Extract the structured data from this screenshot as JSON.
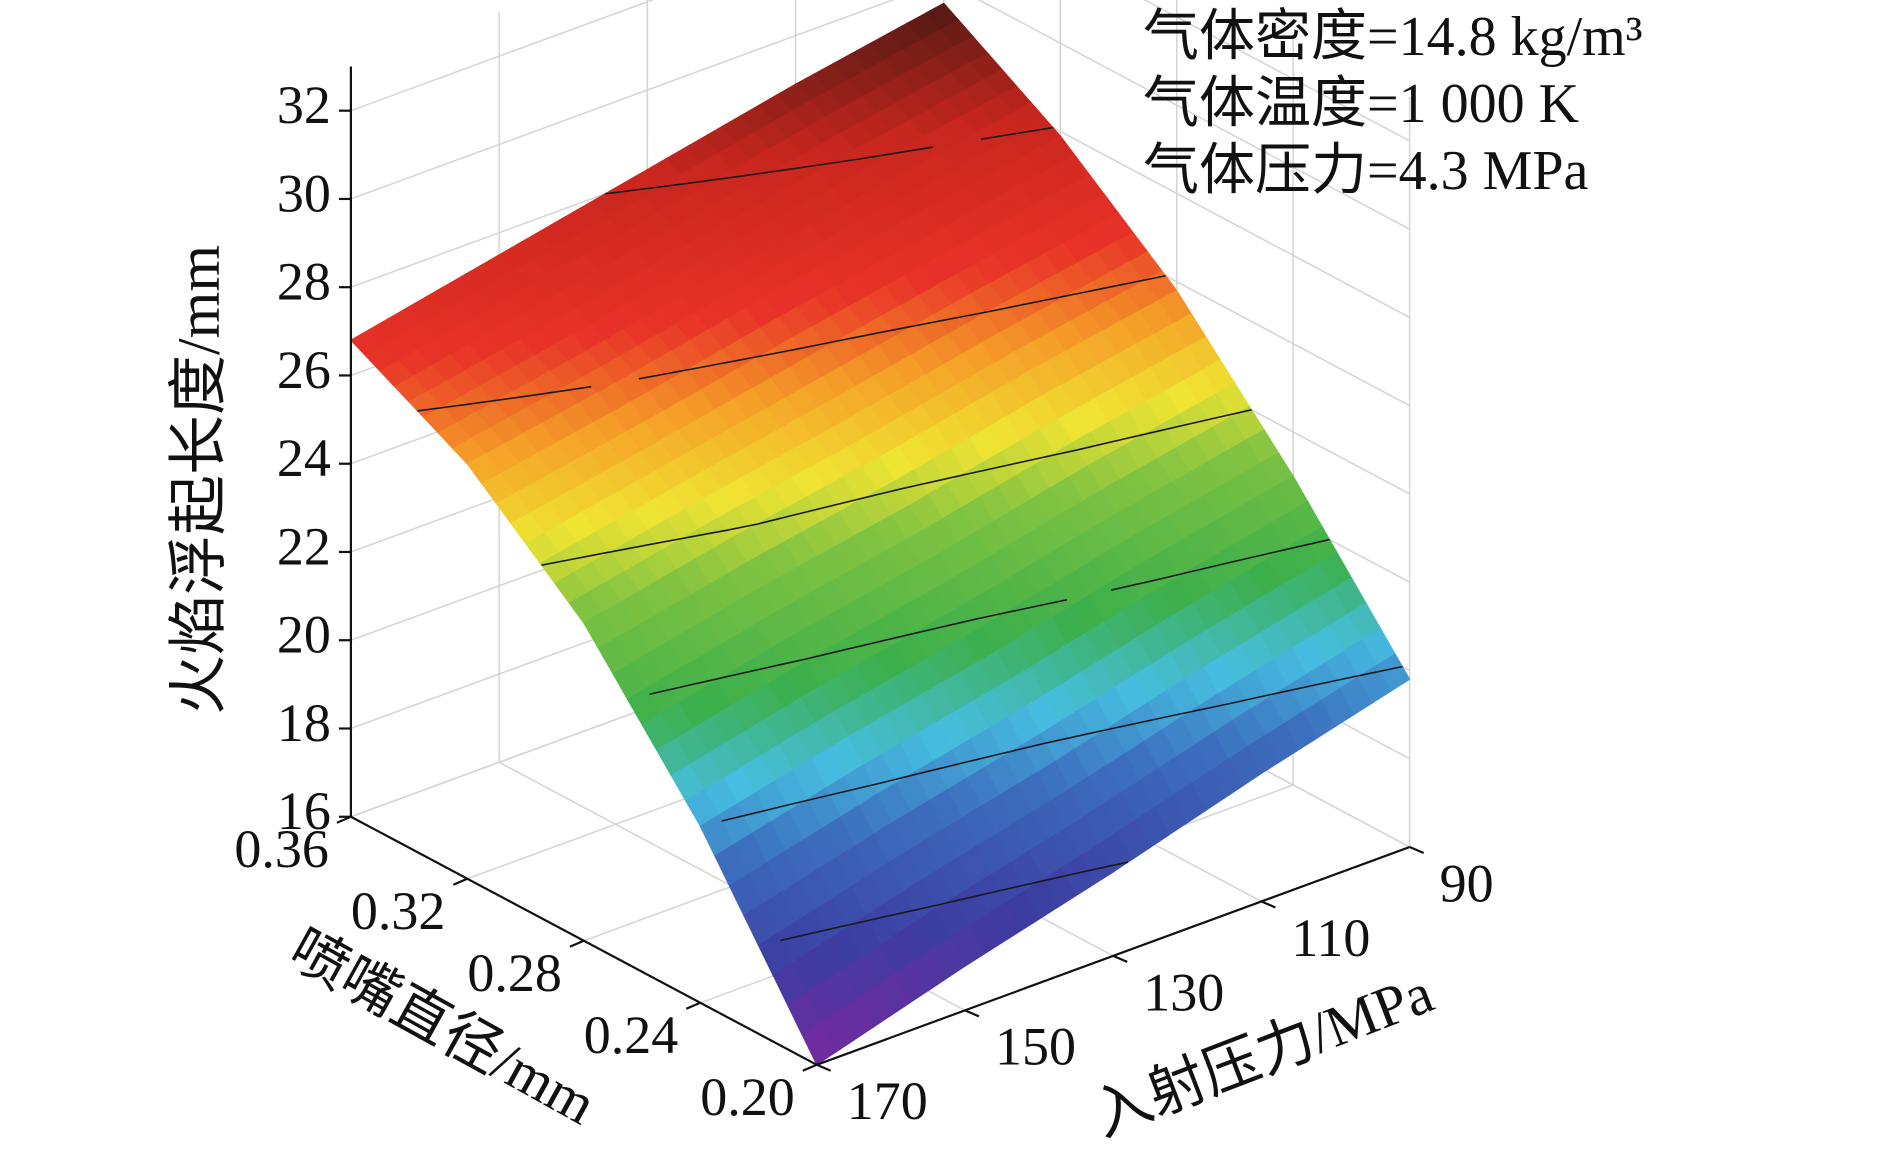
{
  "chart_data": {
    "type": "surface",
    "x_label": "喷嘴直径/mm",
    "y_label": "入射压力/MPa",
    "z_label": "火焰浮起长度/mm",
    "annotations": [
      "气体密度=14.8 kg/m³",
      "气体温度=1 000 K",
      "气体压力=4.3 MPa"
    ],
    "x": [
      0.2,
      0.24,
      0.28,
      0.32,
      0.36
    ],
    "y": [
      90,
      110,
      130,
      150,
      170
    ],
    "z": [
      [
        19.8,
        23.0,
        25.8,
        27.9,
        29.5
      ],
      [
        18.9,
        22.3,
        25.2,
        27.3,
        28.9
      ],
      [
        17.9,
        21.5,
        24.5,
        26.7,
        28.2
      ],
      [
        17.0,
        20.8,
        23.9,
        26.0,
        27.5
      ],
      [
        16.0,
        20.0,
        23.2,
        25.4,
        26.8
      ]
    ],
    "xlim": [
      0.2,
      0.36
    ],
    "xticks": [
      {
        "value": 0.2,
        "label": "0.20"
      },
      0.24,
      0.28,
      0.32,
      0.36
    ],
    "ylim": [
      90,
      170
    ],
    "yticks": [
      90,
      110,
      130,
      150,
      170
    ],
    "zlim": [
      16,
      33
    ],
    "zticks": [
      16,
      18,
      20,
      22,
      24,
      26,
      28,
      30,
      32
    ],
    "grid": true,
    "contours": true
  }
}
